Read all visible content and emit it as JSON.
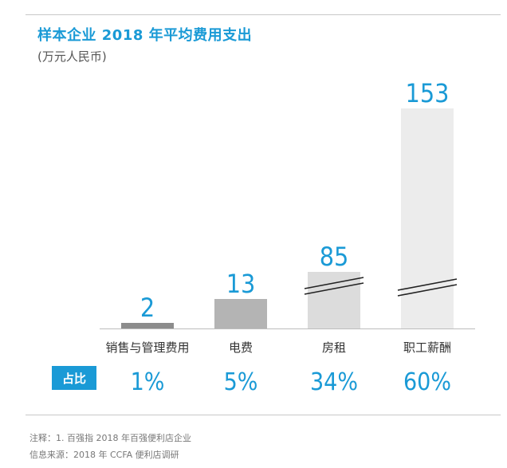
{
  "chart_data": {
    "type": "bar",
    "title": "样本企业 2018 年平均费用支出",
    "subtitle": "(万元人民币)",
    "categories": [
      "销售与管理费用",
      "电费",
      "房租",
      "职工薪酬"
    ],
    "values": [
      2,
      13,
      85,
      153
    ],
    "value_labels": [
      "2",
      "13",
      "85",
      "153"
    ],
    "share_label": "占比",
    "shares": [
      "1%",
      "5%",
      "34%",
      "60%"
    ],
    "axis_breaks": [
      "房租",
      "职工薪酬"
    ],
    "xlabel": "",
    "ylabel": "",
    "grid": false
  },
  "notes": {
    "note": "注释：1. 百强指 2018 年百强便利店企业",
    "source": "信息来源：2018 年 CCFA 便利店调研"
  },
  "colors": {
    "accent": "#1a9ad6",
    "bar_small": "#8c8c8c",
    "bar_mid": "#b4b4b4",
    "bar_light": "#dcdcdc",
    "bar_lightest": "#ececec",
    "text": "#333333"
  }
}
